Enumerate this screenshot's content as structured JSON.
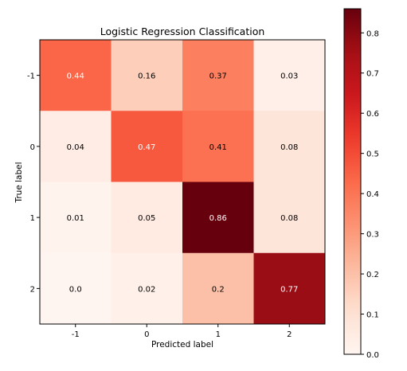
{
  "chart_data": {
    "type": "heatmap",
    "title": "Logistic Regression Classification",
    "xlabel": "Predicted label",
    "ylabel": "True label",
    "x_categories": [
      "-1",
      "0",
      "1",
      "2"
    ],
    "y_categories": [
      "-1",
      "0",
      "1",
      "2"
    ],
    "values": [
      [
        0.44,
        0.16,
        0.37,
        0.03
      ],
      [
        0.04,
        0.47,
        0.41,
        0.08
      ],
      [
        0.01,
        0.05,
        0.86,
        0.08
      ],
      [
        0.0,
        0.02,
        0.2,
        0.77
      ]
    ],
    "value_labels": [
      [
        "0.44",
        "0.16",
        "0.37",
        "0.03"
      ],
      [
        "0.04",
        "0.47",
        "0.41",
        "0.08"
      ],
      [
        "0.01",
        "0.05",
        "0.86",
        "0.08"
      ],
      [
        "0.0",
        "0.02",
        "0.2",
        "0.77"
      ]
    ],
    "colormap": "Reds",
    "color_range": [
      0,
      0.86
    ],
    "colorbar": {
      "ticks": [
        0.0,
        0.1,
        0.2,
        0.3,
        0.4,
        0.5,
        0.6,
        0.7,
        0.8
      ],
      "tick_labels": [
        "0.0",
        "0.1",
        "0.2",
        "0.3",
        "0.4",
        "0.5",
        "0.6",
        "0.7",
        "0.8"
      ]
    },
    "grid": false
  }
}
